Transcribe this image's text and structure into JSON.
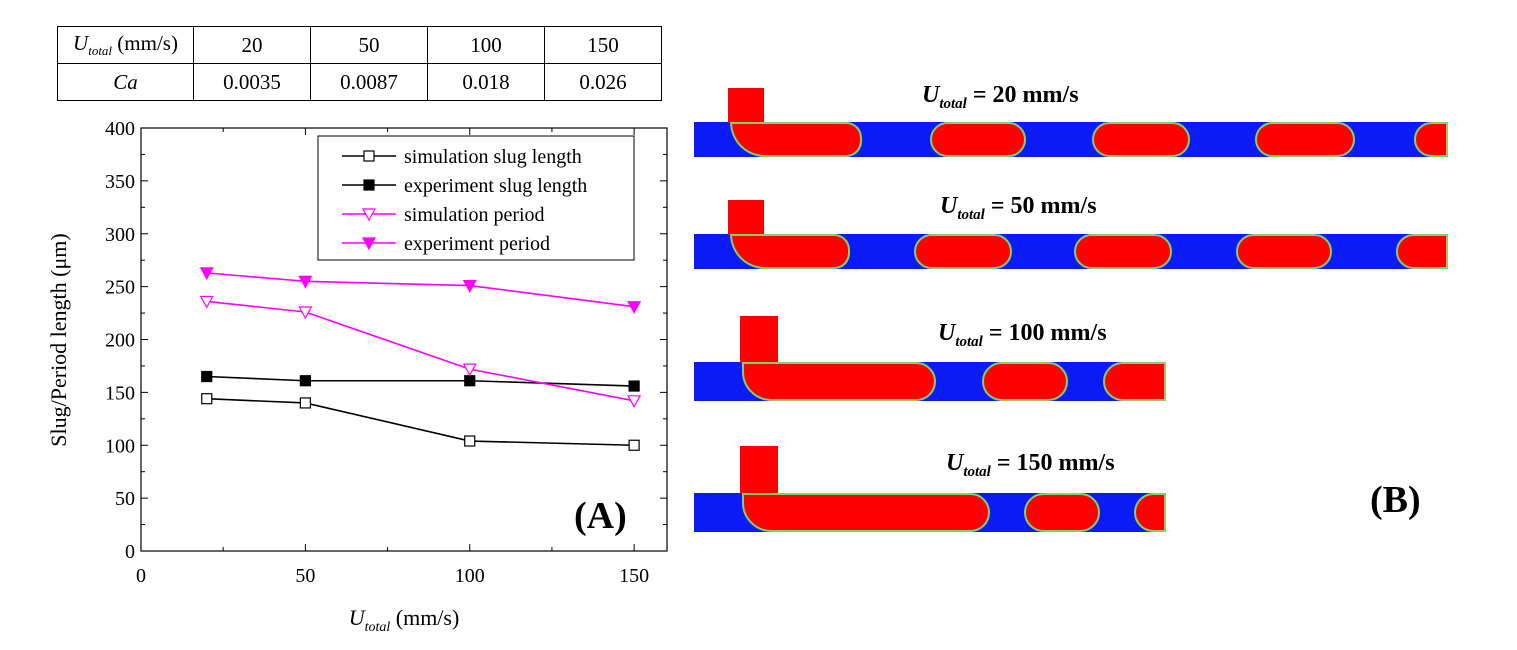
{
  "table": {
    "header_prefix": "U",
    "header_sub": "total",
    "header_suffix": " (mm/s)",
    "velocities": [
      "20",
      "50",
      "100",
      "150"
    ],
    "ca_label": "Ca",
    "ca_values": [
      "0.0035",
      "0.0087",
      "0.018",
      "0.026"
    ]
  },
  "chart_data": {
    "type": "line",
    "xlabel_prefix": "U",
    "xlabel_sub": "total",
    "xlabel_suffix": " (mm/s)",
    "ylabel": "Slug/Period length (μm)",
    "xlim": [
      0,
      160
    ],
    "ylim": [
      0,
      400
    ],
    "xticks": [
      0,
      50,
      100,
      150
    ],
    "yticks": [
      0,
      50,
      100,
      150,
      200,
      250,
      300,
      350,
      400
    ],
    "x": [
      20,
      50,
      100,
      150
    ],
    "legend_position": "top-right",
    "panel_label": "(A)",
    "series": [
      {
        "name": "simulation slug length",
        "values": [
          144,
          140,
          104,
          100
        ],
        "color": "#000000",
        "marker": "square-open"
      },
      {
        "name": "experiment slug length",
        "values": [
          165,
          161,
          161,
          156
        ],
        "color": "#000000",
        "marker": "square-filled"
      },
      {
        "name": "simulation period",
        "values": [
          236,
          226,
          172,
          142
        ],
        "color": "#ff00ff",
        "marker": "triangle-down-open"
      },
      {
        "name": "experiment period",
        "values": [
          263,
          255,
          251,
          231
        ],
        "color": "#ff00ff",
        "marker": "triangle-down-filled"
      }
    ]
  },
  "panel_b": {
    "label": "(B)",
    "colors": {
      "continuous": "#0a1bf5",
      "dispersed": "#ff0000",
      "interface": "#7fd36a"
    },
    "simulations": [
      {
        "prefix": "U",
        "sub": "total",
        "suffix": " = 20 mm/s"
      },
      {
        "prefix": "U",
        "sub": "total",
        "suffix": " = 50 mm/s"
      },
      {
        "prefix": "U",
        "sub": "total",
        "suffix": " = 100 mm/s"
      },
      {
        "prefix": "U",
        "sub": "total",
        "suffix": " = 150 mm/s"
      }
    ]
  }
}
